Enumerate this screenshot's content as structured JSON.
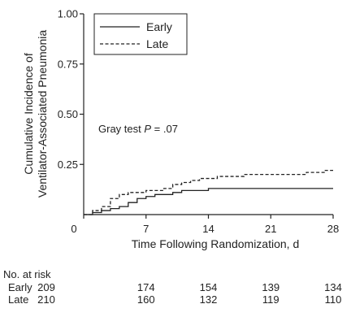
{
  "chart_data": {
    "type": "line",
    "step": true,
    "xlabel": "Time Following Randomization, d",
    "ylabel_lines": [
      "Cumulative Incidence of",
      "Ventilator-Associated Pneumonia"
    ],
    "xlim": [
      0,
      28
    ],
    "ylim": [
      0,
      1.0
    ],
    "xticks": [
      0,
      7,
      14,
      21,
      28
    ],
    "yticks": [
      0.25,
      0.5,
      0.75,
      1.0
    ],
    "ytick_labels": [
      "0.25",
      "0.50",
      "0.75",
      "1.00"
    ],
    "origin_label": "0",
    "grid": false,
    "legend_position": "top-left",
    "annotation": {
      "prefix": "Gray test ",
      "italic": "P",
      "suffix": " = .07"
    },
    "series": [
      {
        "name": "Early",
        "style": "solid",
        "x": [
          0,
          1,
          2,
          3,
          4,
          5,
          6,
          7,
          8,
          10,
          11,
          14,
          28
        ],
        "y": [
          0,
          0.01,
          0.02,
          0.03,
          0.04,
          0.06,
          0.08,
          0.09,
          0.1,
          0.11,
          0.12,
          0.13,
          0.13
        ]
      },
      {
        "name": "Late",
        "style": "dashed",
        "x": [
          0,
          1,
          2,
          3,
          4,
          5,
          6,
          7,
          9,
          10,
          11,
          12,
          13,
          14,
          15,
          18,
          21,
          25,
          27,
          28
        ],
        "y": [
          0,
          0.02,
          0.04,
          0.08,
          0.1,
          0.11,
          0.11,
          0.12,
          0.13,
          0.15,
          0.16,
          0.17,
          0.18,
          0.18,
          0.19,
          0.2,
          0.2,
          0.21,
          0.22,
          0.22
        ]
      }
    ]
  },
  "risk_table": {
    "title": "No. at risk",
    "rows": [
      {
        "label": "Early",
        "values": [
          "209",
          "174",
          "154",
          "139",
          "134"
        ]
      },
      {
        "label": "Late",
        "values": [
          "210",
          "160",
          "132",
          "119",
          "110"
        ]
      }
    ]
  }
}
